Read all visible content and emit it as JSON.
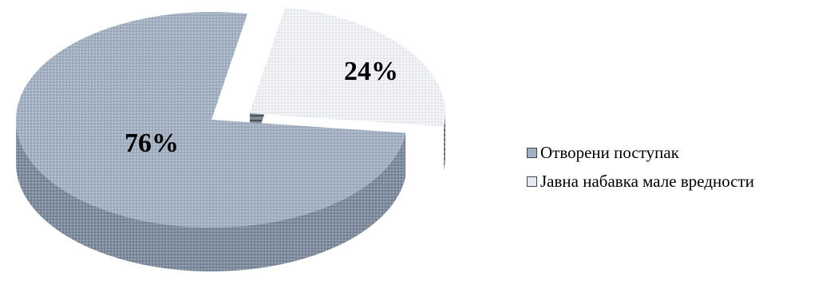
{
  "chart_data": {
    "type": "pie",
    "variant": "3d-exploded",
    "categories": [
      "Отворени поступак",
      "Јавна набавка мале вредности"
    ],
    "values": [
      76,
      24
    ],
    "data_labels": [
      "76%",
      "24%"
    ],
    "colors": [
      "#a3b0c2",
      "#e6e9ed"
    ],
    "side_colors": [
      "#7f8d9f",
      "#77808b"
    ],
    "exploded_index": 1,
    "legend_position": "right"
  }
}
